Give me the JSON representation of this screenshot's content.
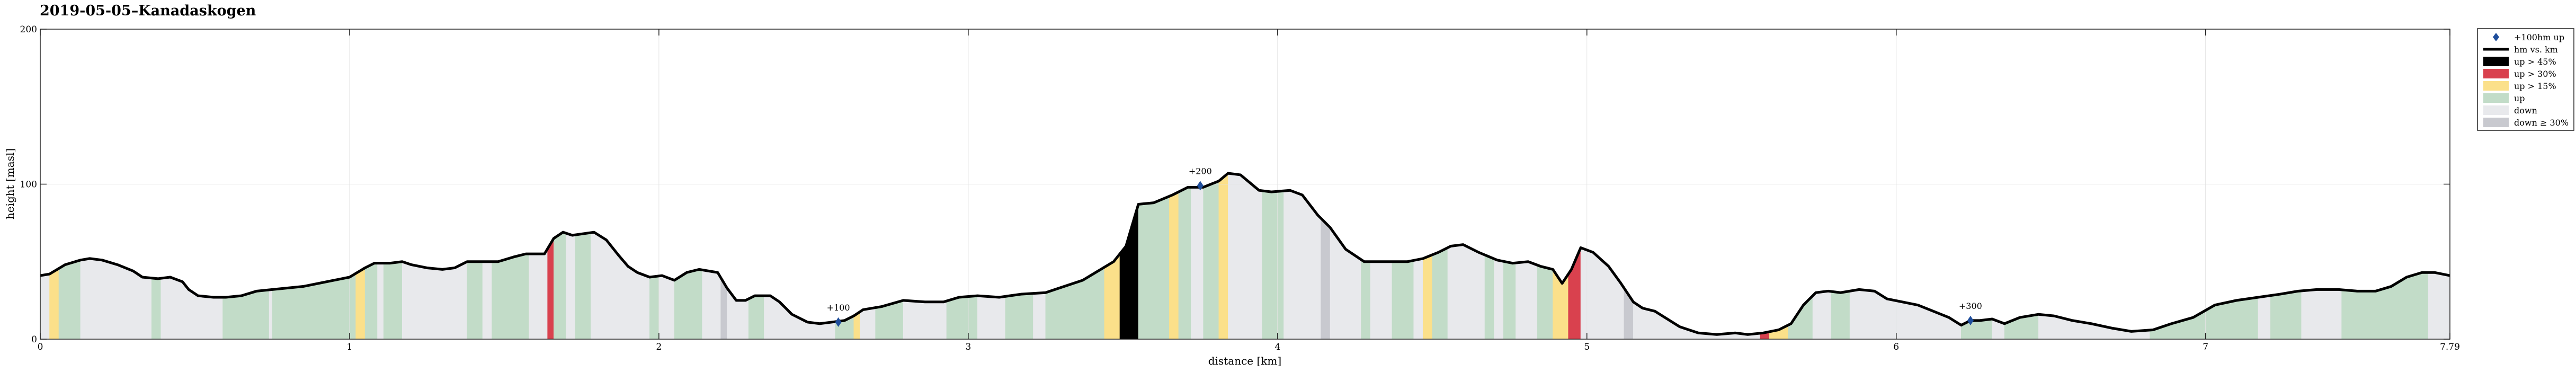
{
  "chart_data": {
    "type": "area",
    "title": "2019-05-05–Kanadaskogen",
    "xlabel": "distance [km]",
    "ylabel": "height [masl]",
    "xlim": [
      0,
      7.79
    ],
    "ylim": [
      0,
      200
    ],
    "x_ticks": [
      {
        "value": 0,
        "label": "0"
      },
      {
        "value": 1,
        "label": "1"
      },
      {
        "value": 2,
        "label": "2"
      },
      {
        "value": 3,
        "label": "3"
      },
      {
        "value": 4,
        "label": "4"
      },
      {
        "value": 5,
        "label": "5"
      },
      {
        "value": 6,
        "label": "6"
      },
      {
        "value": 7,
        "label": "7"
      },
      {
        "value": 7.79,
        "label": "7.79"
      }
    ],
    "y_ticks": [
      {
        "value": 0,
        "label": "0"
      },
      {
        "value": 100,
        "label": "100"
      },
      {
        "value": 200,
        "label": "200"
      }
    ],
    "grid": true,
    "legend_position": "outside-right-top",
    "legend": [
      {
        "key": "marker",
        "label": "+100hm up"
      },
      {
        "key": "line",
        "label": "hm vs. km"
      },
      {
        "key": "up45",
        "label": "up > 45%"
      },
      {
        "key": "up30",
        "label": "up > 30%"
      },
      {
        "key": "up15",
        "label": "up > 15%"
      },
      {
        "key": "up",
        "label": "up"
      },
      {
        "key": "down",
        "label": "down"
      },
      {
        "key": "down30",
        "label": "down ≥ 30%"
      }
    ],
    "colors": {
      "line": "#000000",
      "marker": "#1f4e9c",
      "up45": "#000000",
      "up30": "#d9414e",
      "up15": "#fbe08a",
      "up": "#c2dcc8",
      "down": "#e8e9ec",
      "down30": "#c8c9cf",
      "grid": "#e3e3e3"
    },
    "profile": [
      [
        0.0,
        41
      ],
      [
        0.03,
        42
      ],
      [
        0.08,
        48
      ],
      [
        0.13,
        51
      ],
      [
        0.16,
        52
      ],
      [
        0.2,
        51
      ],
      [
        0.25,
        48
      ],
      [
        0.3,
        44
      ],
      [
        0.33,
        40
      ],
      [
        0.38,
        39
      ],
      [
        0.42,
        40
      ],
      [
        0.46,
        37
      ],
      [
        0.48,
        32
      ],
      [
        0.51,
        28
      ],
      [
        0.56,
        27
      ],
      [
        0.6,
        27
      ],
      [
        0.65,
        28
      ],
      [
        0.7,
        31
      ],
      [
        0.75,
        32
      ],
      [
        0.85,
        34
      ],
      [
        0.95,
        38
      ],
      [
        1.0,
        40
      ],
      [
        1.05,
        46
      ],
      [
        1.08,
        49
      ],
      [
        1.13,
        49
      ],
      [
        1.17,
        50
      ],
      [
        1.2,
        48
      ],
      [
        1.25,
        46
      ],
      [
        1.3,
        45
      ],
      [
        1.34,
        46
      ],
      [
        1.38,
        50
      ],
      [
        1.43,
        50
      ],
      [
        1.48,
        50
      ],
      [
        1.53,
        53
      ],
      [
        1.57,
        55
      ],
      [
        1.63,
        55
      ],
      [
        1.66,
        65
      ],
      [
        1.69,
        69
      ],
      [
        1.72,
        67
      ],
      [
        1.79,
        69
      ],
      [
        1.83,
        64
      ],
      [
        1.87,
        54
      ],
      [
        1.9,
        47
      ],
      [
        1.93,
        43
      ],
      [
        1.97,
        40
      ],
      [
        2.01,
        41
      ],
      [
        2.05,
        38
      ],
      [
        2.09,
        43
      ],
      [
        2.13,
        45
      ],
      [
        2.19,
        43
      ],
      [
        2.22,
        33
      ],
      [
        2.25,
        25
      ],
      [
        2.28,
        25
      ],
      [
        2.31,
        28
      ],
      [
        2.36,
        28
      ],
      [
        2.39,
        24
      ],
      [
        2.43,
        16
      ],
      [
        2.48,
        11
      ],
      [
        2.52,
        10
      ],
      [
        2.56,
        11
      ],
      [
        2.6,
        12
      ],
      [
        2.63,
        15
      ],
      [
        2.66,
        19
      ],
      [
        2.72,
        21
      ],
      [
        2.79,
        25
      ],
      [
        2.86,
        24
      ],
      [
        2.92,
        24
      ],
      [
        2.97,
        27
      ],
      [
        3.03,
        28
      ],
      [
        3.1,
        27
      ],
      [
        3.17,
        29
      ],
      [
        3.25,
        30
      ],
      [
        3.31,
        34
      ],
      [
        3.37,
        38
      ],
      [
        3.42,
        44
      ],
      [
        3.47,
        50
      ],
      [
        3.51,
        60
      ],
      [
        3.55,
        87
      ],
      [
        3.6,
        88
      ],
      [
        3.66,
        93
      ],
      [
        3.71,
        98
      ],
      [
        3.76,
        98
      ],
      [
        3.81,
        102
      ],
      [
        3.84,
        107
      ],
      [
        3.88,
        106
      ],
      [
        3.91,
        101
      ],
      [
        3.94,
        96
      ],
      [
        3.98,
        95
      ],
      [
        4.04,
        96
      ],
      [
        4.08,
        93
      ],
      [
        4.13,
        80
      ],
      [
        4.17,
        72
      ],
      [
        4.22,
        58
      ],
      [
        4.28,
        50
      ],
      [
        4.35,
        50
      ],
      [
        4.42,
        50
      ],
      [
        4.47,
        52
      ],
      [
        4.52,
        56
      ],
      [
        4.56,
        60
      ],
      [
        4.6,
        61
      ],
      [
        4.65,
        56
      ],
      [
        4.71,
        51
      ],
      [
        4.76,
        49
      ],
      [
        4.81,
        50
      ],
      [
        4.85,
        47
      ],
      [
        4.89,
        45
      ],
      [
        4.92,
        36
      ],
      [
        4.95,
        45
      ],
      [
        4.98,
        59
      ],
      [
        5.02,
        56
      ],
      [
        5.07,
        47
      ],
      [
        5.11,
        36
      ],
      [
        5.15,
        24
      ],
      [
        5.18,
        20
      ],
      [
        5.22,
        18
      ],
      [
        5.3,
        8
      ],
      [
        5.36,
        4
      ],
      [
        5.42,
        3
      ],
      [
        5.48,
        4
      ],
      [
        5.52,
        3
      ],
      [
        5.57,
        4
      ],
      [
        5.62,
        6
      ],
      [
        5.66,
        10
      ],
      [
        5.7,
        22
      ],
      [
        5.74,
        30
      ],
      [
        5.78,
        31
      ],
      [
        5.82,
        30
      ],
      [
        5.88,
        32
      ],
      [
        5.93,
        31
      ],
      [
        5.97,
        26
      ],
      [
        6.02,
        24
      ],
      [
        6.07,
        22
      ],
      [
        6.12,
        18
      ],
      [
        6.17,
        14
      ],
      [
        6.21,
        9
      ],
      [
        6.24,
        12
      ],
      [
        6.27,
        12
      ],
      [
        6.31,
        13
      ],
      [
        6.35,
        10
      ],
      [
        6.4,
        14
      ],
      [
        6.46,
        16
      ],
      [
        6.51,
        15
      ],
      [
        6.57,
        12
      ],
      [
        6.63,
        10
      ],
      [
        6.7,
        7
      ],
      [
        6.76,
        5
      ],
      [
        6.83,
        6
      ],
      [
        6.89,
        10
      ],
      [
        6.96,
        14
      ],
      [
        7.03,
        22
      ],
      [
        7.1,
        25
      ],
      [
        7.17,
        27
      ],
      [
        7.24,
        29
      ],
      [
        7.3,
        31
      ],
      [
        7.36,
        32
      ],
      [
        7.43,
        32
      ],
      [
        7.49,
        31
      ],
      [
        7.55,
        31
      ],
      [
        7.6,
        34
      ],
      [
        7.65,
        40
      ],
      [
        7.7,
        43
      ],
      [
        7.74,
        43
      ],
      [
        7.79,
        41
      ]
    ],
    "segments": [
      [
        0.0,
        0.03,
        "down"
      ],
      [
        0.03,
        0.06,
        "up15"
      ],
      [
        0.06,
        0.13,
        "up"
      ],
      [
        0.13,
        0.36,
        "down"
      ],
      [
        0.36,
        0.39,
        "up"
      ],
      [
        0.39,
        0.59,
        "down"
      ],
      [
        0.59,
        0.74,
        "up"
      ],
      [
        0.74,
        0.75,
        "down"
      ],
      [
        0.75,
        1.02,
        "up"
      ],
      [
        1.02,
        1.05,
        "up15"
      ],
      [
        1.05,
        1.09,
        "up"
      ],
      [
        1.09,
        1.11,
        "down"
      ],
      [
        1.11,
        1.17,
        "up"
      ],
      [
        1.17,
        1.38,
        "down"
      ],
      [
        1.38,
        1.43,
        "up"
      ],
      [
        1.43,
        1.46,
        "down"
      ],
      [
        1.46,
        1.58,
        "up"
      ],
      [
        1.58,
        1.64,
        "down"
      ],
      [
        1.64,
        1.66,
        "up30"
      ],
      [
        1.66,
        1.7,
        "up"
      ],
      [
        1.7,
        1.73,
        "down"
      ],
      [
        1.73,
        1.78,
        "up"
      ],
      [
        1.78,
        1.97,
        "down"
      ],
      [
        1.97,
        2.0,
        "up"
      ],
      [
        2.0,
        2.05,
        "down"
      ],
      [
        2.05,
        2.14,
        "up"
      ],
      [
        2.14,
        2.2,
        "down"
      ],
      [
        2.2,
        2.22,
        "down30"
      ],
      [
        2.22,
        2.29,
        "down"
      ],
      [
        2.29,
        2.34,
        "up"
      ],
      [
        2.34,
        2.57,
        "down"
      ],
      [
        2.57,
        2.63,
        "up"
      ],
      [
        2.63,
        2.65,
        "up15"
      ],
      [
        2.65,
        2.7,
        "down"
      ],
      [
        2.7,
        2.79,
        "up"
      ],
      [
        2.79,
        2.93,
        "down"
      ],
      [
        2.93,
        3.03,
        "up"
      ],
      [
        3.03,
        3.12,
        "down"
      ],
      [
        3.12,
        3.21,
        "up"
      ],
      [
        3.21,
        3.25,
        "down"
      ],
      [
        3.25,
        3.44,
        "up"
      ],
      [
        3.44,
        3.49,
        "up15"
      ],
      [
        3.49,
        3.55,
        "up45"
      ],
      [
        3.55,
        3.65,
        "up"
      ],
      [
        3.65,
        3.68,
        "up15"
      ],
      [
        3.68,
        3.72,
        "up"
      ],
      [
        3.72,
        3.76,
        "down"
      ],
      [
        3.76,
        3.81,
        "up"
      ],
      [
        3.81,
        3.84,
        "up15"
      ],
      [
        3.84,
        3.95,
        "down"
      ],
      [
        3.95,
        4.02,
        "up"
      ],
      [
        4.02,
        4.14,
        "down"
      ],
      [
        4.14,
        4.17,
        "down30"
      ],
      [
        4.17,
        4.27,
        "down"
      ],
      [
        4.27,
        4.3,
        "up"
      ],
      [
        4.3,
        4.37,
        "down"
      ],
      [
        4.37,
        4.44,
        "up"
      ],
      [
        4.44,
        4.47,
        "down"
      ],
      [
        4.47,
        4.5,
        "up15"
      ],
      [
        4.5,
        4.55,
        "up"
      ],
      [
        4.55,
        4.67,
        "down"
      ],
      [
        4.67,
        4.7,
        "up"
      ],
      [
        4.7,
        4.73,
        "down"
      ],
      [
        4.73,
        4.77,
        "up"
      ],
      [
        4.77,
        4.84,
        "down"
      ],
      [
        4.84,
        4.89,
        "up"
      ],
      [
        4.89,
        4.94,
        "up15"
      ],
      [
        4.94,
        4.98,
        "up30"
      ],
      [
        4.98,
        5.12,
        "down"
      ],
      [
        5.12,
        5.15,
        "down30"
      ],
      [
        5.15,
        5.56,
        "down"
      ],
      [
        5.56,
        5.59,
        "up30"
      ],
      [
        5.59,
        5.65,
        "up15"
      ],
      [
        5.65,
        5.73,
        "up"
      ],
      [
        5.73,
        5.79,
        "down"
      ],
      [
        5.79,
        5.85,
        "up"
      ],
      [
        5.85,
        6.21,
        "down"
      ],
      [
        6.21,
        6.31,
        "up"
      ],
      [
        6.31,
        6.35,
        "down"
      ],
      [
        6.35,
        6.46,
        "up"
      ],
      [
        6.46,
        6.82,
        "down"
      ],
      [
        6.82,
        7.17,
        "up"
      ],
      [
        7.17,
        7.21,
        "down"
      ],
      [
        7.21,
        7.31,
        "up"
      ],
      [
        7.31,
        7.44,
        "down"
      ],
      [
        7.44,
        7.72,
        "up"
      ],
      [
        7.72,
        7.79,
        "down"
      ]
    ],
    "markers": [
      {
        "x": 2.58,
        "y": 11,
        "label": "+100"
      },
      {
        "x": 3.75,
        "y": 99,
        "label": "+200"
      },
      {
        "x": 6.24,
        "y": 12,
        "label": "+300"
      }
    ]
  }
}
